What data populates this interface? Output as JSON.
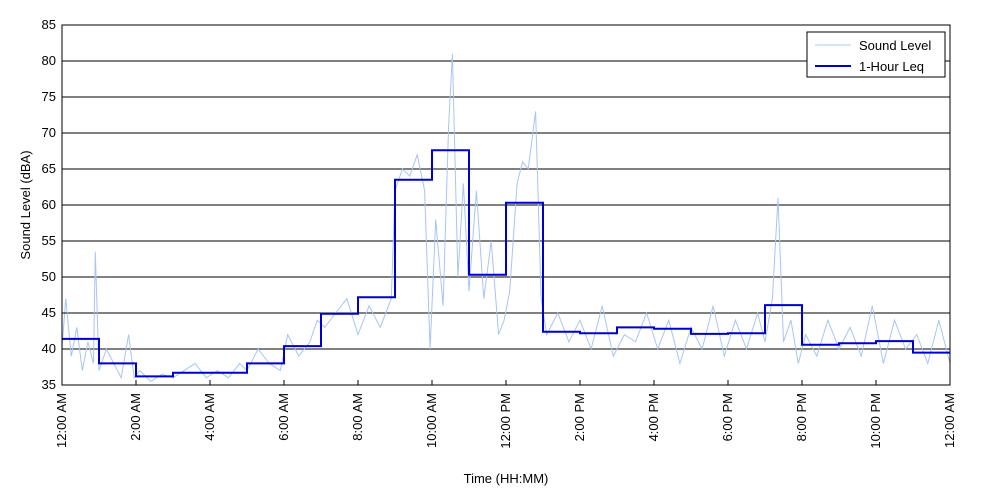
{
  "chart_data": {
    "type": "line",
    "title": "",
    "xlabel": "Time (HH:MM)",
    "ylabel": "Sound Level (dBA)",
    "xlim": [
      0,
      24
    ],
    "ylim": [
      35,
      85
    ],
    "y_ticks": [
      35,
      40,
      45,
      50,
      55,
      60,
      65,
      70,
      75,
      80,
      85
    ],
    "x_ticks": [
      0,
      2,
      4,
      6,
      8,
      10,
      12,
      14,
      16,
      18,
      20,
      22,
      24
    ],
    "x_tick_labels": [
      "12:00 AM",
      "2:00 AM",
      "4:00 AM",
      "6:00 AM",
      "8:00 AM",
      "10:00 AM",
      "12:00 PM",
      "2:00 PM",
      "4:00 PM",
      "6:00 PM",
      "8:00 PM",
      "10:00 PM",
      "12:00 AM"
    ],
    "grid": "horizontal",
    "legend_position": "top-right",
    "series": [
      {
        "name": "Sound Level",
        "style": "thin-line",
        "color": "#a9c4f5",
        "x": [
          0,
          0.1,
          0.25,
          0.4,
          0.55,
          0.7,
          0.85,
          0.9,
          1.0,
          1.2,
          1.4,
          1.6,
          1.8,
          1.95,
          2.1,
          2.4,
          2.7,
          3.0,
          3.3,
          3.6,
          3.9,
          4.2,
          4.5,
          4.8,
          5.0,
          5.3,
          5.6,
          5.9,
          6.1,
          6.4,
          6.7,
          6.9,
          7.1,
          7.4,
          7.7,
          8.0,
          8.3,
          8.6,
          8.9,
          9.0,
          9.2,
          9.4,
          9.6,
          9.8,
          9.95,
          10.1,
          10.3,
          10.45,
          10.55,
          10.7,
          10.85,
          11.0,
          11.2,
          11.4,
          11.6,
          11.8,
          11.95,
          12.1,
          12.3,
          12.45,
          12.6,
          12.8,
          12.95,
          13.1,
          13.4,
          13.7,
          14.0,
          14.3,
          14.6,
          14.9,
          15.2,
          15.5,
          15.8,
          16.1,
          16.4,
          16.7,
          17.0,
          17.3,
          17.6,
          17.9,
          18.2,
          18.5,
          18.8,
          19.0,
          19.2,
          19.35,
          19.5,
          19.7,
          19.9,
          20.1,
          20.4,
          20.7,
          21.0,
          21.3,
          21.6,
          21.9,
          22.2,
          22.5,
          22.8,
          23.1,
          23.4,
          23.7,
          24.0
        ],
        "y": [
          40,
          47,
          39,
          43,
          37,
          41,
          38,
          53.5,
          37,
          40,
          38,
          36,
          42,
          36,
          37,
          35.5,
          36.5,
          36,
          37,
          38,
          36,
          37,
          36,
          38,
          37,
          40,
          38,
          37,
          42,
          39,
          41,
          44,
          43,
          45,
          47,
          42,
          46,
          43,
          47,
          62,
          65,
          64,
          67,
          62,
          40,
          58,
          46,
          71,
          81,
          50,
          63,
          48,
          62,
          47,
          55,
          42,
          44,
          48,
          63,
          66,
          65,
          73,
          47,
          42,
          45,
          41,
          44,
          40,
          46,
          39,
          42,
          41,
          45,
          40,
          44,
          38,
          43,
          40,
          46,
          39,
          44,
          40,
          45,
          41,
          47,
          61,
          41,
          44,
          38,
          42,
          39,
          44,
          40,
          43,
          39,
          46,
          38,
          44,
          40,
          42,
          38,
          44,
          38
        ]
      },
      {
        "name": "1-Hour Leq",
        "style": "step",
        "color": "#0000cc",
        "hour_starts": [
          0,
          1,
          2,
          3,
          4,
          5,
          6,
          7,
          8,
          9,
          10,
          11,
          12,
          13,
          14,
          15,
          16,
          17,
          18,
          19,
          20,
          21,
          22,
          23
        ],
        "values": [
          41.4,
          38.0,
          36.2,
          36.7,
          36.7,
          38.0,
          40.4,
          44.9,
          47.2,
          63.5,
          67.6,
          50.3,
          60.3,
          42.4,
          42.2,
          43.0,
          42.8,
          42.1,
          42.2,
          46.1,
          40.6,
          40.8,
          41.1,
          39.5
        ]
      }
    ]
  }
}
